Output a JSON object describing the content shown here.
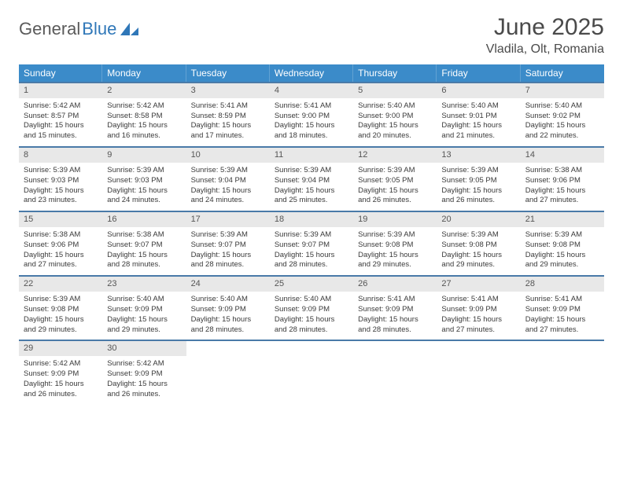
{
  "brand": {
    "word1": "General",
    "word2": "Blue"
  },
  "title": "June 2025",
  "location": "Vladila, Olt, Romania",
  "colors": {
    "header_bg": "#3b8bc9",
    "row_divider": "#4a7aa8",
    "daynum_bg": "#e8e8e8",
    "text": "#333333",
    "title_text": "#4a4a4a",
    "brand_blue": "#2f77b8",
    "brand_gray": "#5a5a5a"
  },
  "days_of_week": [
    "Sunday",
    "Monday",
    "Tuesday",
    "Wednesday",
    "Thursday",
    "Friday",
    "Saturday"
  ],
  "weeks": [
    [
      {
        "n": "1",
        "sr": "5:42 AM",
        "ss": "8:57 PM",
        "dl": "15 hours and 15 minutes."
      },
      {
        "n": "2",
        "sr": "5:42 AM",
        "ss": "8:58 PM",
        "dl": "15 hours and 16 minutes."
      },
      {
        "n": "3",
        "sr": "5:41 AM",
        "ss": "8:59 PM",
        "dl": "15 hours and 17 minutes."
      },
      {
        "n": "4",
        "sr": "5:41 AM",
        "ss": "9:00 PM",
        "dl": "15 hours and 18 minutes."
      },
      {
        "n": "5",
        "sr": "5:40 AM",
        "ss": "9:00 PM",
        "dl": "15 hours and 20 minutes."
      },
      {
        "n": "6",
        "sr": "5:40 AM",
        "ss": "9:01 PM",
        "dl": "15 hours and 21 minutes."
      },
      {
        "n": "7",
        "sr": "5:40 AM",
        "ss": "9:02 PM",
        "dl": "15 hours and 22 minutes."
      }
    ],
    [
      {
        "n": "8",
        "sr": "5:39 AM",
        "ss": "9:03 PM",
        "dl": "15 hours and 23 minutes."
      },
      {
        "n": "9",
        "sr": "5:39 AM",
        "ss": "9:03 PM",
        "dl": "15 hours and 24 minutes."
      },
      {
        "n": "10",
        "sr": "5:39 AM",
        "ss": "9:04 PM",
        "dl": "15 hours and 24 minutes."
      },
      {
        "n": "11",
        "sr": "5:39 AM",
        "ss": "9:04 PM",
        "dl": "15 hours and 25 minutes."
      },
      {
        "n": "12",
        "sr": "5:39 AM",
        "ss": "9:05 PM",
        "dl": "15 hours and 26 minutes."
      },
      {
        "n": "13",
        "sr": "5:39 AM",
        "ss": "9:05 PM",
        "dl": "15 hours and 26 minutes."
      },
      {
        "n": "14",
        "sr": "5:38 AM",
        "ss": "9:06 PM",
        "dl": "15 hours and 27 minutes."
      }
    ],
    [
      {
        "n": "15",
        "sr": "5:38 AM",
        "ss": "9:06 PM",
        "dl": "15 hours and 27 minutes."
      },
      {
        "n": "16",
        "sr": "5:38 AM",
        "ss": "9:07 PM",
        "dl": "15 hours and 28 minutes."
      },
      {
        "n": "17",
        "sr": "5:39 AM",
        "ss": "9:07 PM",
        "dl": "15 hours and 28 minutes."
      },
      {
        "n": "18",
        "sr": "5:39 AM",
        "ss": "9:07 PM",
        "dl": "15 hours and 28 minutes."
      },
      {
        "n": "19",
        "sr": "5:39 AM",
        "ss": "9:08 PM",
        "dl": "15 hours and 29 minutes."
      },
      {
        "n": "20",
        "sr": "5:39 AM",
        "ss": "9:08 PM",
        "dl": "15 hours and 29 minutes."
      },
      {
        "n": "21",
        "sr": "5:39 AM",
        "ss": "9:08 PM",
        "dl": "15 hours and 29 minutes."
      }
    ],
    [
      {
        "n": "22",
        "sr": "5:39 AM",
        "ss": "9:08 PM",
        "dl": "15 hours and 29 minutes."
      },
      {
        "n": "23",
        "sr": "5:40 AM",
        "ss": "9:09 PM",
        "dl": "15 hours and 29 minutes."
      },
      {
        "n": "24",
        "sr": "5:40 AM",
        "ss": "9:09 PM",
        "dl": "15 hours and 28 minutes."
      },
      {
        "n": "25",
        "sr": "5:40 AM",
        "ss": "9:09 PM",
        "dl": "15 hours and 28 minutes."
      },
      {
        "n": "26",
        "sr": "5:41 AM",
        "ss": "9:09 PM",
        "dl": "15 hours and 28 minutes."
      },
      {
        "n": "27",
        "sr": "5:41 AM",
        "ss": "9:09 PM",
        "dl": "15 hours and 27 minutes."
      },
      {
        "n": "28",
        "sr": "5:41 AM",
        "ss": "9:09 PM",
        "dl": "15 hours and 27 minutes."
      }
    ],
    [
      {
        "n": "29",
        "sr": "5:42 AM",
        "ss": "9:09 PM",
        "dl": "15 hours and 26 minutes."
      },
      {
        "n": "30",
        "sr": "5:42 AM",
        "ss": "9:09 PM",
        "dl": "15 hours and 26 minutes."
      },
      null,
      null,
      null,
      null,
      null
    ]
  ],
  "labels": {
    "sunrise": "Sunrise:",
    "sunset": "Sunset:",
    "daylight": "Daylight:"
  }
}
